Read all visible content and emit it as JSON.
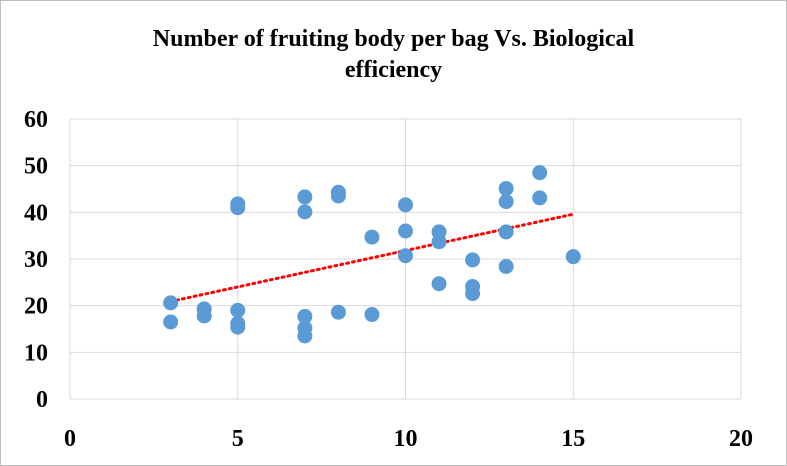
{
  "chart_data": {
    "type": "scatter",
    "title_lines": [
      "Number of fruiting body per bag Vs. Biological",
      "efficiency"
    ],
    "xlabel": "",
    "ylabel": "",
    "xlim": [
      0,
      20
    ],
    "ylim": [
      0,
      60
    ],
    "x_ticks": [
      0,
      5,
      10,
      15,
      20
    ],
    "y_ticks": [
      0,
      10,
      20,
      30,
      40,
      50,
      60
    ],
    "grid": true,
    "legend": "none",
    "marker_color": "#5B9BD5",
    "trendline": {
      "type": "linear",
      "color": "#FF0000",
      "style": "dotted",
      "x_start": 3,
      "x_end": 15,
      "y_start": 20.9,
      "y_end": 39.6
    },
    "points": [
      {
        "x": 3,
        "y": 20.6
      },
      {
        "x": 3,
        "y": 16.5
      },
      {
        "x": 4,
        "y": 19.3
      },
      {
        "x": 4,
        "y": 17.8
      },
      {
        "x": 5,
        "y": 41.8
      },
      {
        "x": 5,
        "y": 41.0
      },
      {
        "x": 5,
        "y": 19.0
      },
      {
        "x": 5,
        "y": 16.2
      },
      {
        "x": 5,
        "y": 15.4
      },
      {
        "x": 7,
        "y": 43.3
      },
      {
        "x": 7,
        "y": 40.1
      },
      {
        "x": 7,
        "y": 17.7
      },
      {
        "x": 7,
        "y": 15.2
      },
      {
        "x": 7,
        "y": 13.5
      },
      {
        "x": 8,
        "y": 44.3
      },
      {
        "x": 8,
        "y": 43.5
      },
      {
        "x": 8,
        "y": 18.6
      },
      {
        "x": 9,
        "y": 34.7
      },
      {
        "x": 9,
        "y": 18.1
      },
      {
        "x": 10,
        "y": 41.6
      },
      {
        "x": 10,
        "y": 36.0
      },
      {
        "x": 10,
        "y": 30.7
      },
      {
        "x": 11,
        "y": 35.8
      },
      {
        "x": 11,
        "y": 33.7
      },
      {
        "x": 11,
        "y": 24.7
      },
      {
        "x": 12,
        "y": 29.8
      },
      {
        "x": 12,
        "y": 24.1
      },
      {
        "x": 12,
        "y": 22.6
      },
      {
        "x": 13,
        "y": 45.1
      },
      {
        "x": 13,
        "y": 42.3
      },
      {
        "x": 13,
        "y": 35.8
      },
      {
        "x": 13,
        "y": 28.4
      },
      {
        "x": 14,
        "y": 48.5
      },
      {
        "x": 14,
        "y": 43.1
      },
      {
        "x": 15,
        "y": 30.5
      }
    ]
  }
}
